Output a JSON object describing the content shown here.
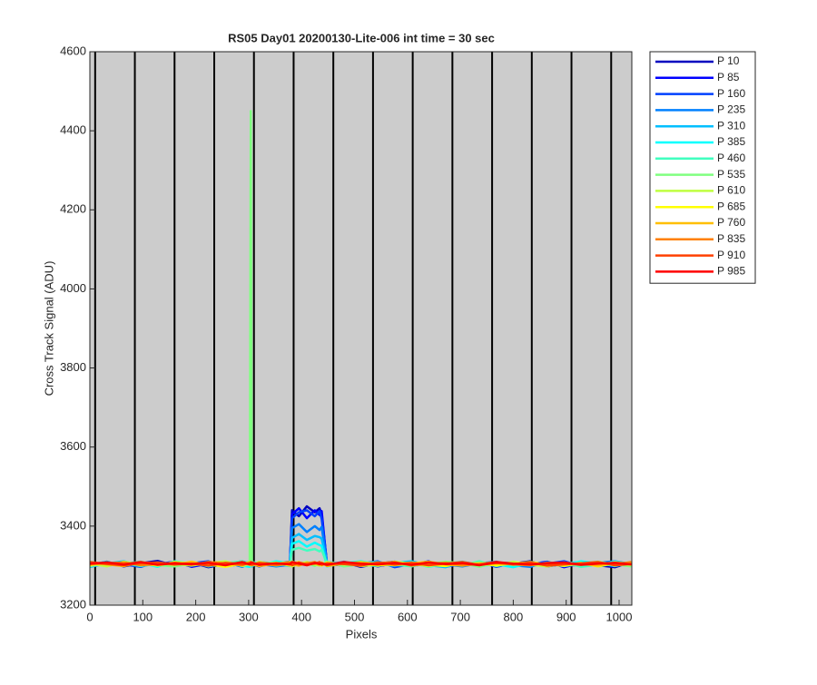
{
  "chart_data": {
    "type": "line",
    "title": "RS05 Day01 20200130-Lite-006 int time = 30 sec",
    "x_label": "Pixels",
    "y_label": "Cross Track Signal (ADU)",
    "xlim": [
      0,
      1024
    ],
    "ylim": [
      3200,
      4600
    ],
    "xticks": [
      0,
      100,
      200,
      300,
      400,
      500,
      600,
      700,
      800,
      900,
      1000
    ],
    "yticks": [
      3200,
      3400,
      3600,
      3800,
      4000,
      4200,
      4400,
      4600
    ],
    "vertical_lines": [
      10,
      85,
      160,
      235,
      310,
      385,
      460,
      535,
      610,
      685,
      760,
      835,
      910,
      985
    ],
    "plot_background": "#cccccc",
    "legend_position": "outside-right",
    "x": [
      0,
      32,
      64,
      96,
      128,
      160,
      192,
      224,
      256,
      288,
      302,
      304,
      306,
      320,
      352,
      378,
      382,
      395,
      410,
      425,
      434,
      438,
      448,
      480,
      512,
      544,
      576,
      608,
      640,
      672,
      704,
      736,
      768,
      800,
      832,
      864,
      896,
      928,
      960,
      992,
      1023
    ],
    "series": [
      {
        "name": "P 10",
        "color": "#0000bf",
        "values": [
          3302,
          3310,
          3298,
          3306,
          3312,
          3300,
          3308,
          3296,
          3304,
          3311,
          3303,
          3305,
          3299,
          3307,
          3301,
          3305,
          3440,
          3425,
          3450,
          3435,
          3445,
          3430,
          3304,
          3308,
          3297,
          3305,
          3310,
          3301,
          3306,
          3299,
          3303,
          3308,
          3300,
          3305,
          3311,
          3298,
          3304,
          3307,
          3301,
          3296,
          3309
        ]
      },
      {
        "name": "P 85",
        "color": "#0000ff",
        "values": [
          3306,
          3299,
          3309,
          3301,
          3304,
          3310,
          3297,
          3305,
          3300,
          3308,
          3306,
          3302,
          3304,
          3298,
          3309,
          3303,
          3430,
          3445,
          3420,
          3440,
          3428,
          3438,
          3300,
          3303,
          3309,
          3298,
          3306,
          3302,
          3311,
          3297,
          3305,
          3301,
          3307,
          3299,
          3304,
          3310,
          3296,
          3306,
          3303,
          3308,
          3300
        ]
      },
      {
        "name": "P 160",
        "color": "#0040ff",
        "values": [
          3300,
          3307,
          3303,
          3297,
          3309,
          3302,
          3306,
          3311,
          3298,
          3304,
          3301,
          3308,
          3305,
          3300,
          3306,
          3310,
          3420,
          3435,
          3440,
          3425,
          3438,
          3418,
          3307,
          3299,
          3305,
          3311,
          3296,
          3304,
          3300,
          3308,
          3302,
          3309,
          3297,
          3306,
          3301,
          3305,
          3311,
          3299,
          3304,
          3302,
          3307
        ]
      },
      {
        "name": "P 235",
        "color": "#0080ff",
        "values": [
          3308,
          3301,
          3305,
          3310,
          3299,
          3306,
          3303,
          3300,
          3309,
          3297,
          3305,
          3300,
          3307,
          3304,
          3298,
          3302,
          3395,
          3405,
          3385,
          3400,
          3390,
          3398,
          3302,
          3310,
          3300,
          3304,
          3308,
          3299,
          3305,
          3303,
          3298,
          3306,
          3310,
          3301,
          3297,
          3309,
          3302,
          3300,
          3307,
          3311,
          3304
        ]
      },
      {
        "name": "P 310",
        "color": "#00bfff",
        "values": [
          3297,
          3305,
          3311,
          3300,
          3303,
          3307,
          3301,
          3309,
          3302,
          3306,
          3310,
          3304,
          3298,
          3309,
          3305,
          3299,
          3370,
          3380,
          3365,
          3375,
          3372,
          3368,
          3309,
          3305,
          3302,
          3299,
          3307,
          3311,
          3301,
          3296,
          3309,
          3303,
          3305,
          3308,
          3300,
          3302,
          3306,
          3309,
          3298,
          3305,
          3301
        ]
      },
      {
        "name": "P 385",
        "color": "#00ffff",
        "values": [
          3304,
          3309,
          3300,
          3307,
          3297,
          3311,
          3305,
          3302,
          3308,
          3300,
          3297,
          3309,
          3303,
          3301,
          3311,
          3306,
          3355,
          3362,
          3348,
          3358,
          3352,
          3350,
          3298,
          3306,
          3311,
          3303,
          3300,
          3307,
          3297,
          3305,
          3310,
          3299,
          3303,
          3296,
          3307,
          3305,
          3300,
          3311,
          3306,
          3299,
          3308
        ]
      },
      {
        "name": "P 460",
        "color": "#40ffbf",
        "values": [
          3310,
          3302,
          3306,
          3299,
          3305,
          3301,
          3309,
          3298,
          3306,
          3311,
          3300,
          3303,
          3309,
          3306,
          3300,
          3304,
          3340,
          3345,
          3338,
          3342,
          3336,
          3340,
          3305,
          3301,
          3306,
          3309,
          3302,
          3298,
          3308,
          3304,
          3301,
          3311,
          3299,
          3307,
          3305,
          3300,
          3308,
          3297,
          3302,
          3310,
          3303
        ]
      },
      {
        "name": "P 535",
        "color": "#80ff80",
        "values": [
          3299,
          3306,
          3304,
          3310,
          3301,
          3298,
          3305,
          3307,
          3300,
          3303,
          3306,
          4450,
          3301,
          3305,
          3308,
          3300,
          3311,
          3302,
          3306,
          3299,
          3307,
          3303,
          3310,
          3298,
          3303,
          3307,
          3305,
          3300,
          3304,
          3310,
          3306,
          3297,
          3308,
          3302,
          3306,
          3304,
          3299,
          3305,
          3310,
          3303,
          3298
        ]
      },
      {
        "name": "P 610",
        "color": "#bfff40",
        "values": [
          3305,
          3298,
          3310,
          3303,
          3307,
          3304,
          3300,
          3306,
          3311,
          3299,
          3304,
          3307,
          3300,
          3310,
          3302,
          3307,
          3298,
          3305,
          3309,
          3303,
          3300,
          3306,
          3301,
          3307,
          3299,
          3302,
          3310,
          3305,
          3298,
          3306,
          3303,
          3307,
          3300,
          3310,
          3302,
          3298,
          3305,
          3303,
          3309,
          3300,
          3306
        ]
      },
      {
        "name": "P 685",
        "color": "#ffff00",
        "values": [
          3301,
          3308,
          3302,
          3305,
          3300,
          3309,
          3306,
          3303,
          3297,
          3305,
          3309,
          3301,
          3306,
          3302,
          3307,
          3300,
          3305,
          3309,
          3301,
          3306,
          3304,
          3300,
          3308,
          3303,
          3306,
          3300,
          3304,
          3308,
          3302,
          3299,
          3307,
          3304,
          3301,
          3305,
          3309,
          3303,
          3300,
          3307,
          3298,
          3306,
          3302
        ]
      },
      {
        "name": "P 760",
        "color": "#ffbf00",
        "values": [
          3307,
          3303,
          3299,
          3308,
          3306,
          3302,
          3310,
          3301,
          3305,
          3307,
          3302,
          3306,
          3304,
          3299,
          3305,
          3309,
          3303,
          3300,
          3307,
          3305,
          3302,
          3308,
          3299,
          3305,
          3309,
          3304,
          3301,
          3306,
          3310,
          3303,
          3300,
          3305,
          3308,
          3302,
          3306,
          3301,
          3307,
          3304,
          3300,
          3308,
          3305
        ]
      },
      {
        "name": "P 835",
        "color": "#ff8000",
        "values": [
          3303,
          3306,
          3308,
          3301,
          3304,
          3307,
          3302,
          3309,
          3306,
          3301,
          3308,
          3303,
          3306,
          3304,
          3301,
          3305,
          3308,
          3302,
          3306,
          3309,
          3303,
          3305,
          3301,
          3308,
          3302,
          3306,
          3309,
          3300,
          3305,
          3307,
          3302,
          3304,
          3309,
          3303,
          3301,
          3307,
          3305,
          3302,
          3306,
          3303,
          3309
        ]
      },
      {
        "name": "P 910",
        "color": "#ff4000",
        "values": [
          3309,
          3304,
          3301,
          3306,
          3308,
          3303,
          3305,
          3300,
          3307,
          3304,
          3305,
          3309,
          3302,
          3307,
          3304,
          3306,
          3301,
          3308,
          3303,
          3305,
          3309,
          3302,
          3306,
          3304,
          3300,
          3308,
          3303,
          3307,
          3301,
          3305,
          3309,
          3302,
          3306,
          3304,
          3308,
          3300,
          3303,
          3306,
          3309,
          3301,
          3304
        ]
      },
      {
        "name": "P 985",
        "color": "#ff0000",
        "values": [
          3305,
          3308,
          3303,
          3309,
          3302,
          3306,
          3304,
          3307,
          3301,
          3309,
          3303,
          3306,
          3308,
          3302,
          3306,
          3303,
          3309,
          3305,
          3301,
          3307,
          3304,
          3306,
          3302,
          3309,
          3305,
          3303,
          3307,
          3302,
          3308,
          3304,
          3306,
          3301,
          3309,
          3305,
          3303,
          3306,
          3308,
          3302,
          3305,
          3307,
          3303
        ]
      }
    ]
  }
}
